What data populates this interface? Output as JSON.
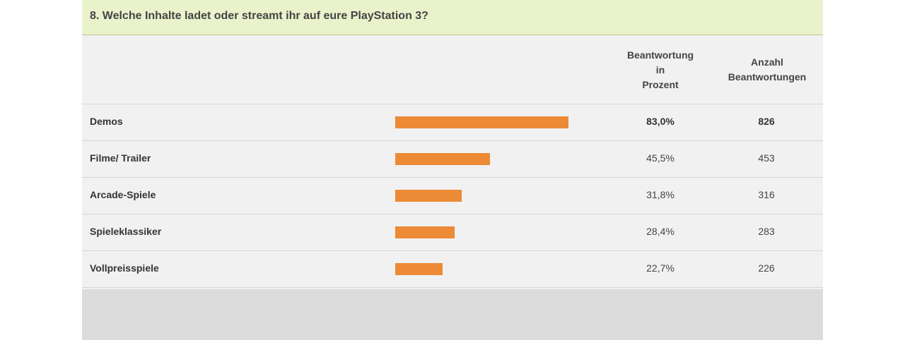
{
  "title": "8. Welche Inhalte ladet oder streamt ihr auf eure PlayStation 3?",
  "columns": {
    "percent_lines": [
      "Beantwortung",
      "in",
      "Prozent"
    ],
    "count_lines": [
      "Anzahl",
      "Beantwortungen"
    ]
  },
  "colors": {
    "bar": "#ec8a35",
    "title_background": "#eaf2cc",
    "table_background": "#f1f1f1"
  },
  "chart_data": {
    "type": "bar",
    "orientation": "horizontal",
    "title": "8. Welche Inhalte ladet oder streamt ihr auf eure PlayStation 3?",
    "categories": [
      "Demos",
      "Filme/ Trailer",
      "Arcade-Spiele",
      "Spieleklassiker",
      "Vollpreisspiele"
    ],
    "values": [
      83.0,
      45.5,
      31.8,
      28.4,
      22.7
    ],
    "percent_labels": [
      "83,0%",
      "45,5%",
      "31,8%",
      "28,4%",
      "22,7%"
    ],
    "counts": [
      826,
      453,
      316,
      283,
      226
    ],
    "xlim": [
      0,
      100
    ],
    "grid": false
  }
}
